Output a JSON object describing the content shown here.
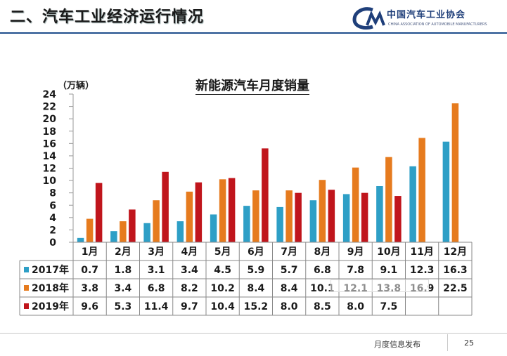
{
  "header": {
    "title": "二、汽车工业经济运行情况",
    "logo_cn": "中国汽车工业协会",
    "logo_en": "CHINA ASSOCIATION OF AUTOMOBILE MANUFACTURERS"
  },
  "footer": {
    "label": "月度信息发布",
    "page": "25"
  },
  "colors": {
    "s2017": "#2e9fc6",
    "s2018": "#e67b1e",
    "s2019": "#c0151c",
    "brand": "#1f4e8c"
  },
  "chart_data": {
    "type": "bar",
    "title": "新能源汽车月度销量",
    "ylabel": "（万辆）",
    "xlabel": "",
    "ylim": [
      0,
      24
    ],
    "yticks": [
      "0",
      "2",
      "4",
      "6",
      "8",
      "10",
      "12",
      "14",
      "16",
      "18",
      "20",
      "22",
      "24"
    ],
    "grid": false,
    "categories": [
      "1月",
      "2月",
      "3月",
      "4月",
      "5月",
      "6月",
      "7月",
      "8月",
      "9月",
      "10月",
      "11月",
      "12月"
    ],
    "series": [
      {
        "name": "2017年",
        "values": [
          0.7,
          1.8,
          3.1,
          3.4,
          4.5,
          5.9,
          5.7,
          6.8,
          7.8,
          9.1,
          12.3,
          16.3
        ],
        "labels": [
          "0.7",
          "1.8",
          "3.1",
          "3.4",
          "4.5",
          "5.9",
          "5.7",
          "6.8",
          "7.8",
          "9.1",
          "12.3",
          "16.3"
        ]
      },
      {
        "name": "2018年",
        "values": [
          3.8,
          3.4,
          6.8,
          8.2,
          10.2,
          8.4,
          8.4,
          10.1,
          12.1,
          13.8,
          16.9,
          22.5
        ],
        "labels": [
          "3.8",
          "3.4",
          "6.8",
          "8.2",
          "10.2",
          "8.4",
          "8.4",
          "10.1",
          "12.1",
          "13.8",
          "16.9",
          "22.5"
        ]
      },
      {
        "name": "2019年",
        "values": [
          9.6,
          5.3,
          11.4,
          9.7,
          10.4,
          15.2,
          8.0,
          8.5,
          8.0,
          7.5,
          null,
          null
        ],
        "labels": [
          "9.6",
          "5.3",
          "11.4",
          "9.7",
          "10.4",
          "15.2",
          "8.0",
          "8.5",
          "8.0",
          "7.5",
          "",
          ""
        ]
      }
    ]
  }
}
